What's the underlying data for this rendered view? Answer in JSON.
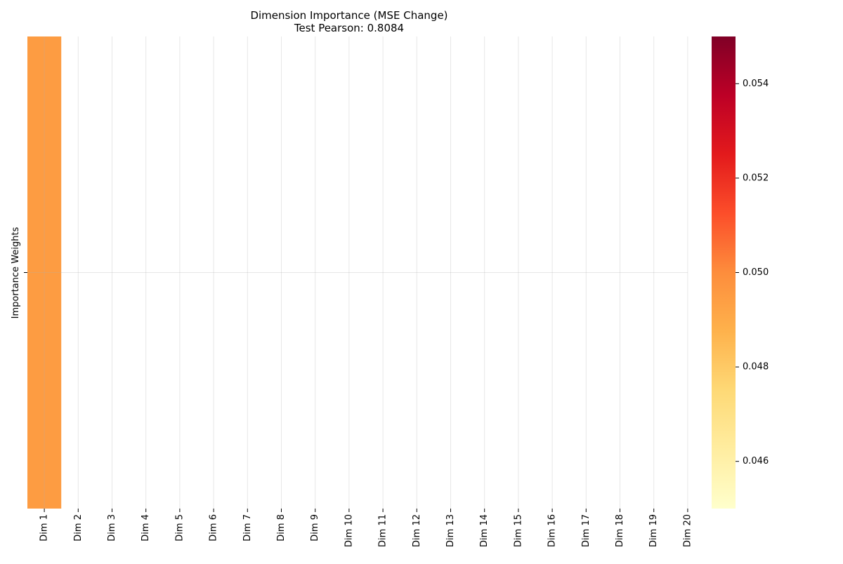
{
  "chart_data": {
    "type": "heatmap",
    "title": "Dimension Importance (MSE Change)",
    "subtitle": "Test Pearson: 0.8084",
    "ylabel": "Importance Weights",
    "xlabel": "",
    "categories": [
      "Dim 1",
      "Dim 2",
      "Dim 3",
      "Dim 4",
      "Dim 5",
      "Dim 6",
      "Dim 7",
      "Dim 8",
      "Dim 9",
      "Dim 10",
      "Dim 11",
      "Dim 12",
      "Dim 13",
      "Dim 14",
      "Dim 15",
      "Dim 16",
      "Dim 17",
      "Dim 18",
      "Dim 19",
      "Dim 20"
    ],
    "rows": [
      "Importance Weights"
    ],
    "values": [
      [
        0.0495,
        null,
        null,
        null,
        null,
        null,
        null,
        null,
        null,
        null,
        null,
        null,
        null,
        null,
        null,
        null,
        null,
        null,
        null,
        null
      ]
    ],
    "colorbar": {
      "colormap": "YlOrRd",
      "range": [
        0.045,
        0.055
      ],
      "ticks": [
        "0.046",
        "0.048",
        "0.050",
        "0.052",
        "0.054"
      ],
      "stops": [
        "#ffffcc",
        "#ffeda0",
        "#fed976",
        "#feb24c",
        "#fd8d3c",
        "#fc4e2a",
        "#e31a1c",
        "#bd0026",
        "#800026"
      ]
    },
    "grid": true
  }
}
